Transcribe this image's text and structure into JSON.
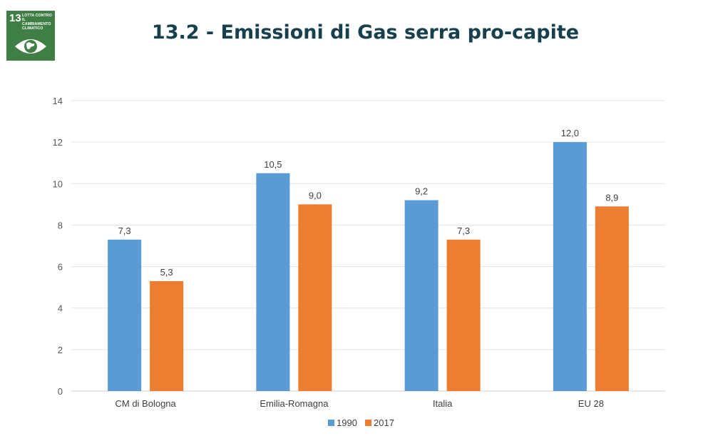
{
  "header": {
    "title": "13.2 - Emissioni di Gas serra pro-capite"
  },
  "sdg_badge": {
    "number": "13",
    "text": "LOTTA CONTRO\nIL CAMBIAMENTO\nCLIMATICO",
    "color": "#3f7e44",
    "icon": "eye-globe-icon"
  },
  "chart_data": {
    "type": "bar",
    "categories": [
      "CM di Bologna",
      "Emilia-Romagna",
      "Italia",
      "EU 28"
    ],
    "series": [
      {
        "name": "1990",
        "values": [
          7.3,
          10.5,
          9.2,
          12.0
        ],
        "labels": [
          "7,3",
          "10,5",
          "9,2",
          "12,0"
        ],
        "color": "#5b9bd5"
      },
      {
        "name": "2017",
        "values": [
          5.3,
          9.0,
          7.3,
          8.9
        ],
        "labels": [
          "5,3",
          "9,0",
          "7,3",
          "8,9"
        ],
        "color": "#ed7d31"
      }
    ],
    "ylim": [
      0,
      14
    ],
    "yticks": [
      0,
      2,
      4,
      6,
      8,
      10,
      12,
      14
    ],
    "grid": true,
    "legend": "bottom"
  }
}
